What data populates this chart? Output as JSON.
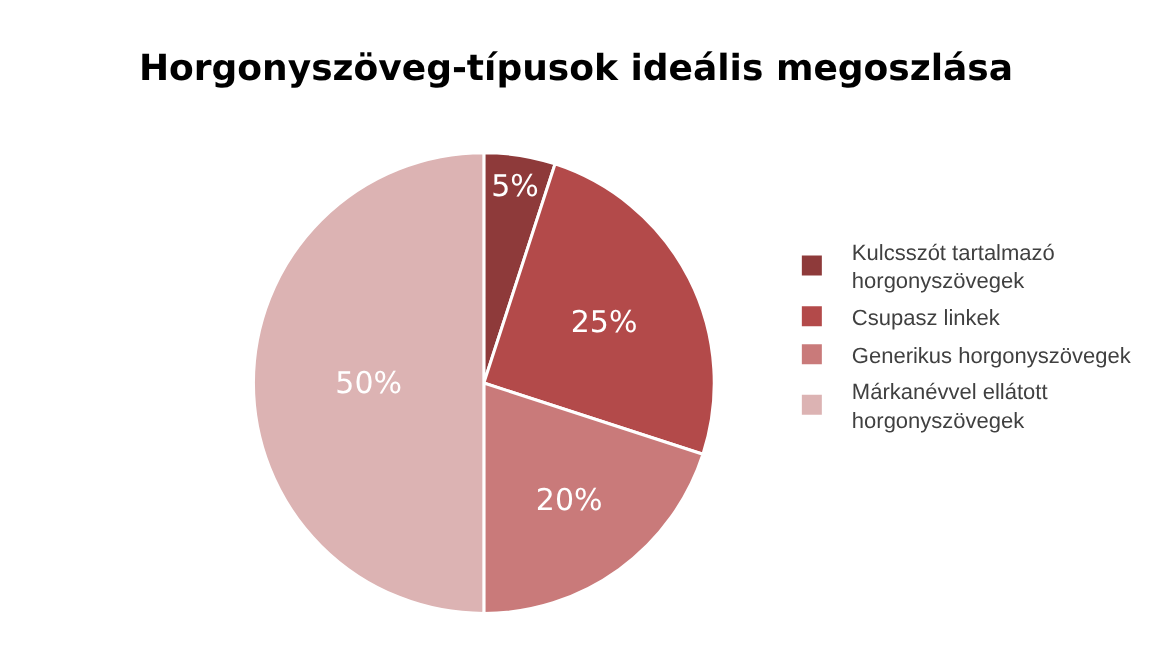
{
  "chart_data": {
    "type": "pie",
    "title": "Horgonyszöveg-típusok ideális megoszlása",
    "categories": [
      "Kulcsszót tartalmazó\nhorgonyszövegek",
      "Csupasz linkek",
      "Generikus horgonyszövegek",
      "Márkanévvel ellátott\nhorgonyszövegek"
    ],
    "values": [
      5,
      25,
      20,
      50
    ],
    "value_labels": [
      "5%",
      "25%",
      "20%",
      "50%"
    ],
    "colors": [
      "#8e3a3a",
      "#b34a4a",
      "#c97a7a",
      "#dcb3b3"
    ],
    "legend": "right"
  }
}
